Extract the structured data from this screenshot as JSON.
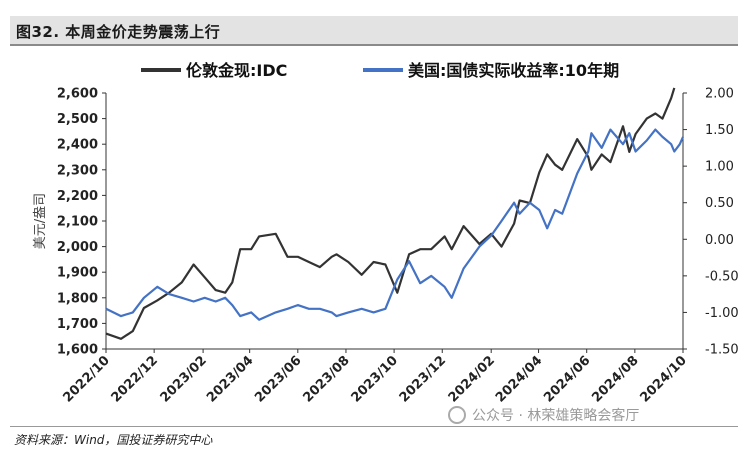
{
  "figure_title": "图32. 本周金价走势震荡上行",
  "source_note": "资料来源：Wind，国投证券研究中心",
  "watermark": "公众号 · 林荣雄策略会客厅",
  "colors": {
    "gold": "#333333",
    "yield": "#4472c4"
  },
  "chart_data": {
    "type": "line",
    "title": "",
    "ylabel_left": "美元/盎司",
    "ylabel_right": "",
    "left_ylim": [
      1600,
      2600
    ],
    "right_ylim": [
      -1.5,
      2.0
    ],
    "left_ticks": [
      "1,600",
      "1,700",
      "1,800",
      "1,900",
      "2,000",
      "2,100",
      "2,200",
      "2,300",
      "2,400",
      "2,500",
      "2,600"
    ],
    "right_ticks": [
      "-1.50",
      "-1.00",
      "-0.50",
      "0.00",
      "0.50",
      "1.00",
      "1.50",
      "2.00"
    ],
    "x_ticks": [
      "2022/10",
      "2022/12",
      "2023/02",
      "2023/04",
      "2023/06",
      "2023/08",
      "2023/10",
      "2023/12",
      "2024/02",
      "2024/04",
      "2024/06",
      "2024/08",
      "2024/10"
    ],
    "x_range": [
      "2022-10-01",
      "2024-10-01"
    ],
    "series": [
      {
        "name": "伦敦金现:IDC",
        "axis": "left",
        "x": [
          "2022-10-01",
          "2022-10-20",
          "2022-11-04",
          "2022-11-18",
          "2022-12-05",
          "2022-12-20",
          "2023-01-05",
          "2023-01-20",
          "2023-02-03",
          "2023-02-17",
          "2023-03-01",
          "2023-03-10",
          "2023-03-20",
          "2023-04-03",
          "2023-04-13",
          "2023-05-04",
          "2023-05-19",
          "2023-06-01",
          "2023-06-15",
          "2023-06-29",
          "2023-07-14",
          "2023-07-20",
          "2023-08-04",
          "2023-08-21",
          "2023-09-05",
          "2023-09-20",
          "2023-10-05",
          "2023-10-20",
          "2023-11-03",
          "2023-11-17",
          "2023-12-04",
          "2023-12-13",
          "2023-12-28",
          "2024-01-17",
          "2024-02-01",
          "2024-02-14",
          "2024-03-01",
          "2024-03-08",
          "2024-03-21",
          "2024-04-02",
          "2024-04-12",
          "2024-04-22",
          "2024-05-01",
          "2024-05-20",
          "2024-06-03",
          "2024-06-07",
          "2024-06-20",
          "2024-07-01",
          "2024-07-17",
          "2024-07-25",
          "2024-08-02",
          "2024-08-16",
          "2024-08-27",
          "2024-09-05",
          "2024-09-16",
          "2024-09-20"
        ],
        "values": [
          1660,
          1640,
          1670,
          1760,
          1790,
          1820,
          1860,
          1930,
          1880,
          1830,
          1820,
          1860,
          1990,
          1990,
          2040,
          2050,
          1960,
          1960,
          1940,
          1920,
          1960,
          1970,
          1940,
          1890,
          1940,
          1930,
          1820,
          1970,
          1990,
          1990,
          2040,
          1990,
          2080,
          2010,
          2050,
          2000,
          2090,
          2180,
          2170,
          2290,
          2360,
          2320,
          2300,
          2420,
          2350,
          2300,
          2360,
          2330,
          2470,
          2370,
          2440,
          2500,
          2520,
          2500,
          2580,
          2620
        ]
      },
      {
        "name": "美国:国债实际收益率:10年期",
        "axis": "right",
        "x": [
          "2022-10-01",
          "2022-10-20",
          "2022-11-04",
          "2022-11-18",
          "2022-12-05",
          "2022-12-20",
          "2023-01-05",
          "2023-01-20",
          "2023-02-03",
          "2023-02-17",
          "2023-03-01",
          "2023-03-10",
          "2023-03-20",
          "2023-04-03",
          "2023-04-13",
          "2023-05-04",
          "2023-05-19",
          "2023-06-01",
          "2023-06-15",
          "2023-06-29",
          "2023-07-14",
          "2023-07-20",
          "2023-08-04",
          "2023-08-21",
          "2023-09-05",
          "2023-09-20",
          "2023-10-05",
          "2023-10-20",
          "2023-11-03",
          "2023-11-17",
          "2023-12-04",
          "2023-12-13",
          "2023-12-28",
          "2024-01-17",
          "2024-02-01",
          "2024-02-14",
          "2024-03-01",
          "2024-03-08",
          "2024-03-21",
          "2024-04-02",
          "2024-04-12",
          "2024-04-22",
          "2024-05-01",
          "2024-05-20",
          "2024-06-03",
          "2024-06-07",
          "2024-06-20",
          "2024-07-01",
          "2024-07-17",
          "2024-07-25",
          "2024-08-02",
          "2024-08-16",
          "2024-08-27",
          "2024-09-05",
          "2024-09-16",
          "2024-09-20",
          "2024-09-27",
          "2024-10-01"
        ],
        "values": [
          -0.95,
          -1.05,
          -1.0,
          -0.8,
          -0.65,
          -0.75,
          -0.8,
          -0.85,
          -0.8,
          -0.85,
          -0.8,
          -0.9,
          -1.05,
          -1.0,
          -1.1,
          -1.0,
          -0.95,
          -0.9,
          -0.95,
          -0.95,
          -1.0,
          -1.05,
          -1.0,
          -0.95,
          -1.0,
          -0.95,
          -0.55,
          -0.3,
          -0.6,
          -0.5,
          -0.65,
          -0.8,
          -0.4,
          -0.1,
          0.05,
          0.25,
          0.5,
          0.35,
          0.5,
          0.4,
          0.15,
          0.4,
          0.35,
          0.9,
          1.2,
          1.45,
          1.25,
          1.5,
          1.3,
          1.45,
          1.2,
          1.35,
          1.5,
          1.4,
          1.3,
          1.2,
          1.3,
          1.4
        ]
      }
    ],
    "grid": false,
    "legend_position": "top"
  }
}
